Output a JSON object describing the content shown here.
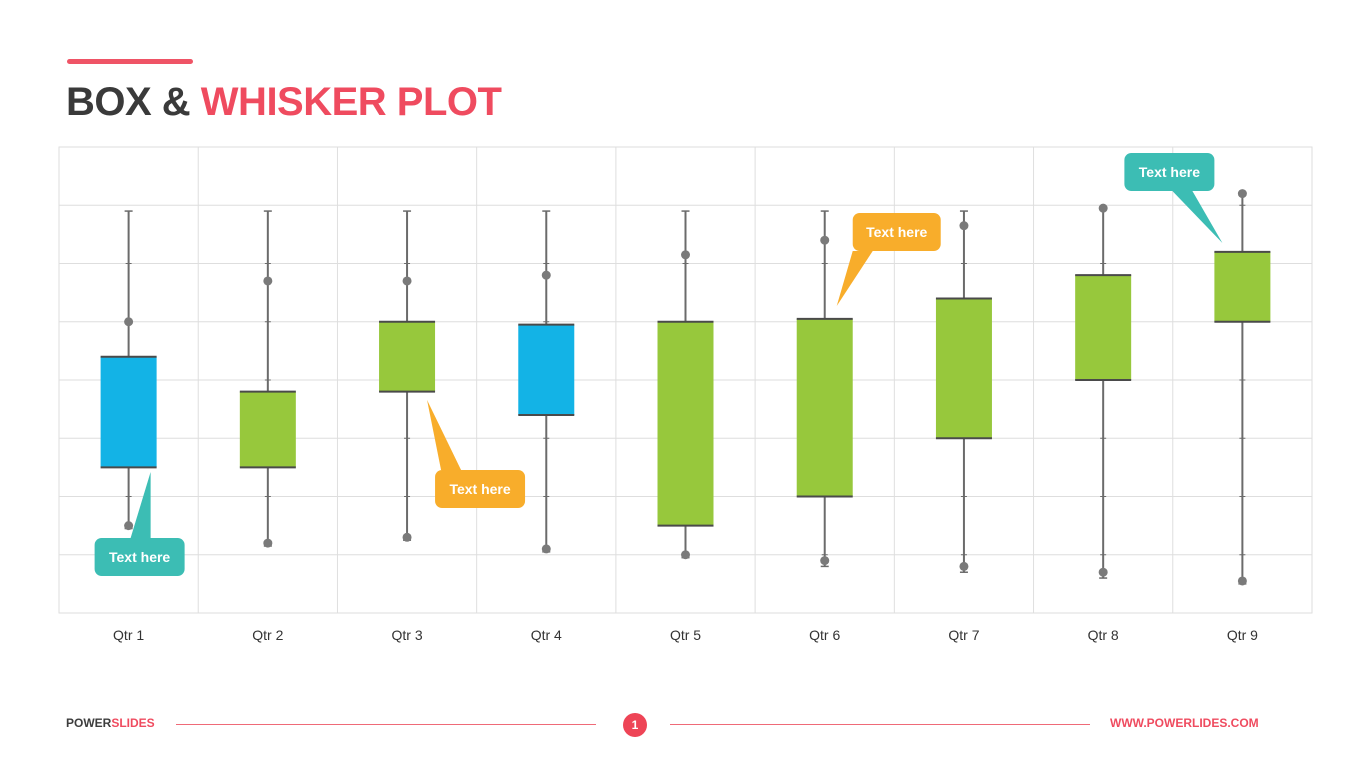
{
  "title": {
    "part1": "BOX & ",
    "part2": "WHISKER PLOT"
  },
  "footer": {
    "brand_part1": "POWER",
    "brand_part2": "SLIDES",
    "page": "1",
    "url": "WWW.POWERLIDES.COM"
  },
  "colors": {
    "accent": "#ef4b5f",
    "blue": "#13b3e6",
    "green": "#97c83c",
    "teal": "#3cbdb4",
    "orange": "#f8ad2b",
    "whisker": "#6b6b6b",
    "grid": "#dedede"
  },
  "chart_data": {
    "type": "box",
    "categories": [
      "Qtr 1",
      "Qtr 2",
      "Qtr 3",
      "Qtr 4",
      "Qtr 5",
      "Qtr 6",
      "Qtr 7",
      "Qtr 8",
      "Qtr 9"
    ],
    "ylim": [
      0,
      8
    ],
    "grid": true,
    "boxes": [
      {
        "whisker_high": 6.9,
        "box_high": 4.4,
        "box_low": 2.5,
        "whisker_low": 1.45,
        "outliers": [
          5.0,
          1.5
        ],
        "color": "blue"
      },
      {
        "whisker_high": 6.9,
        "box_high": 3.8,
        "box_low": 2.5,
        "whisker_low": 1.15,
        "outliers": [
          5.7,
          1.2
        ],
        "color": "green"
      },
      {
        "whisker_high": 6.9,
        "box_high": 5.0,
        "box_low": 3.8,
        "whisker_low": 1.25,
        "outliers": [
          5.7,
          1.3
        ],
        "color": "green"
      },
      {
        "whisker_high": 6.9,
        "box_high": 4.95,
        "box_low": 3.4,
        "whisker_low": 1.05,
        "outliers": [
          5.8,
          1.1
        ],
        "color": "blue"
      },
      {
        "whisker_high": 6.9,
        "box_high": 5.0,
        "box_low": 1.5,
        "whisker_low": 0.95,
        "outliers": [
          6.15,
          1.0
        ],
        "color": "green"
      },
      {
        "whisker_high": 6.9,
        "box_high": 5.05,
        "box_low": 2.0,
        "whisker_low": 0.8,
        "outliers": [
          6.4,
          0.9
        ],
        "color": "green"
      },
      {
        "whisker_high": 6.9,
        "box_high": 5.4,
        "box_low": 3.0,
        "whisker_low": 0.7,
        "outliers": [
          6.65,
          0.8
        ],
        "color": "green"
      },
      {
        "whisker_high": 6.95,
        "box_high": 5.8,
        "box_low": 4.0,
        "whisker_low": 0.6,
        "outliers": [
          6.95,
          0.7
        ],
        "color": "green"
      },
      {
        "whisker_high": 7.2,
        "box_high": 6.2,
        "box_low": 5.0,
        "whisker_low": 0.5,
        "outliers": [
          7.2,
          0.55
        ],
        "color": "green"
      }
    ],
    "callouts": [
      {
        "text": "Text here",
        "category": 0,
        "color": "teal"
      },
      {
        "text": "Text here",
        "category": 2,
        "color": "orange"
      },
      {
        "text": "Text here",
        "category": 5,
        "color": "orange"
      },
      {
        "text": "Text here",
        "category": 8,
        "color": "teal"
      }
    ]
  }
}
